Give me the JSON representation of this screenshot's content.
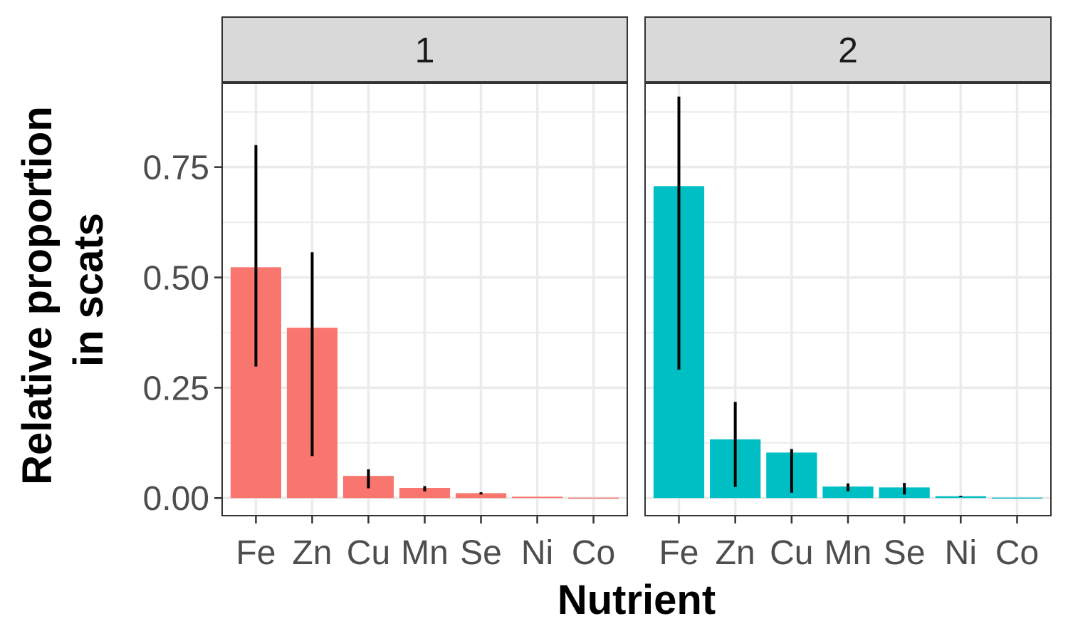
{
  "chart_data": {
    "type": "bar",
    "xlabel": "Nutrient",
    "ylabel_lines": [
      "Relative proportion",
      "in scats"
    ],
    "categories": [
      "Fe",
      "Zn",
      "Cu",
      "Mn",
      "Se",
      "Ni",
      "Co"
    ],
    "ylim": [
      -0.04,
      0.94
    ],
    "yticks": [
      0.0,
      0.25,
      0.5,
      0.75
    ],
    "ytick_labels": [
      "0.00",
      "0.25",
      "0.50",
      "0.75"
    ],
    "grid": true,
    "legend": "none",
    "colors": {
      "panel_1": "#F8766D",
      "panel_2": "#00BFC4",
      "error_bar": "#000000",
      "strip_fill": "#d9d9d9",
      "grid": "#ebebeb",
      "border": "#333333"
    },
    "panels": [
      {
        "label": "1",
        "values": [
          0.523,
          0.386,
          0.05,
          0.023,
          0.011,
          0.003,
          0.001
        ],
        "err_low": [
          0.298,
          0.095,
          0.022,
          0.015,
          0.008,
          0.002,
          0.001
        ],
        "err_high": [
          0.8,
          0.557,
          0.065,
          0.027,
          0.013,
          0.004,
          0.001
        ]
      },
      {
        "label": "2",
        "values": [
          0.707,
          0.133,
          0.103,
          0.026,
          0.024,
          0.004,
          0.001
        ],
        "err_low": [
          0.291,
          0.025,
          0.012,
          0.015,
          0.008,
          0.002,
          0.001
        ],
        "err_high": [
          0.91,
          0.218,
          0.111,
          0.033,
          0.034,
          0.005,
          0.001
        ]
      }
    ]
  }
}
